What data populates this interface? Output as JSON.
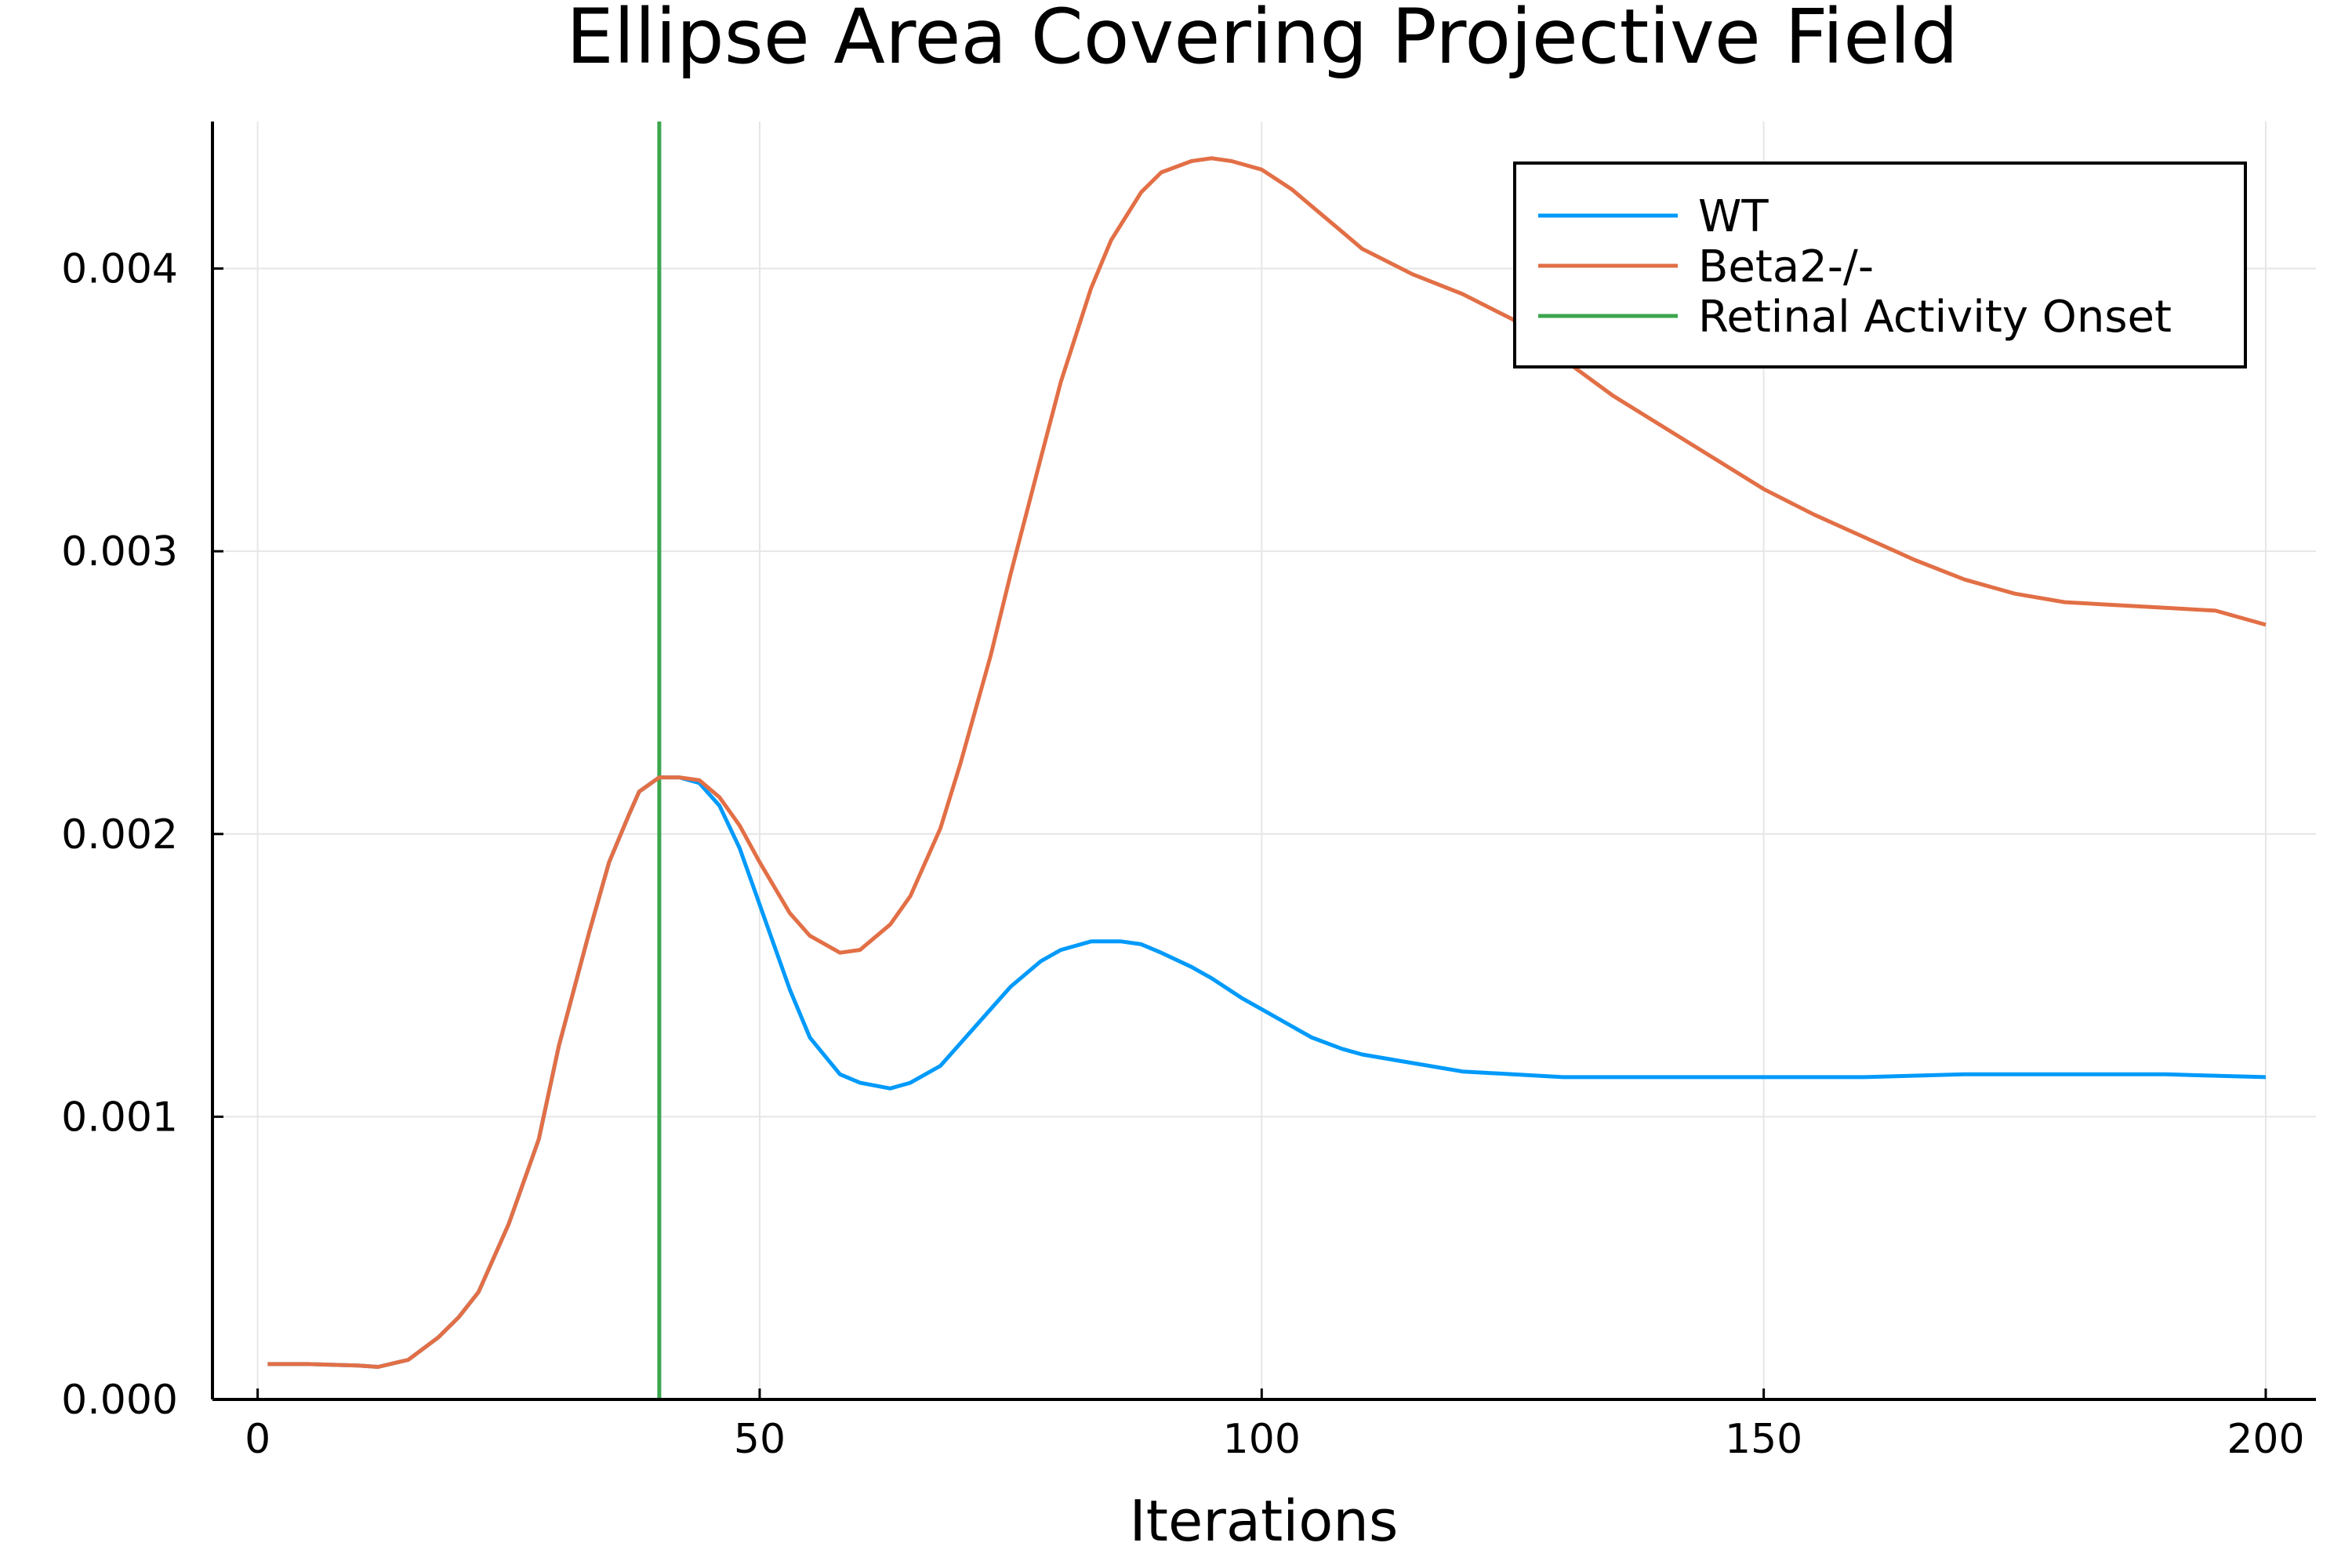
{
  "chart_data": {
    "type": "line",
    "title": "Ellipse Area Covering Projective Field",
    "xlabel": "Iterations",
    "ylabel": "",
    "xlim": [
      -4.5,
      205
    ],
    "ylim": [
      0,
      0.00452
    ],
    "xticks": [
      0,
      50,
      100,
      150,
      200
    ],
    "xtick_labels": [
      "0",
      "50",
      "100",
      "150",
      "200"
    ],
    "yticks": [
      0,
      0.001,
      0.002,
      0.003,
      0.004
    ],
    "ytick_labels": [
      "0.000",
      "0.001",
      "0.002",
      "0.003",
      "0.004"
    ],
    "grid": true,
    "legend_position": "top-right",
    "series": [
      {
        "name": "WT",
        "color": "#009AFA",
        "x": [
          1,
          5,
          10,
          12,
          15,
          18,
          20,
          22,
          25,
          28,
          30,
          33,
          35,
          37,
          38,
          40,
          42,
          44,
          46,
          48,
          50,
          53,
          55,
          58,
          60,
          63,
          65,
          68,
          70,
          73,
          75,
          78,
          80,
          83,
          86,
          88,
          90,
          93,
          95,
          98,
          100,
          103,
          105,
          108,
          110,
          115,
          120,
          125,
          130,
          140,
          150,
          160,
          170,
          180,
          190,
          200
        ],
        "y": [
          0.000125,
          0.000125,
          0.00012,
          0.000115,
          0.00014,
          0.00022,
          0.00029,
          0.00038,
          0.00062,
          0.00092,
          0.00125,
          0.00165,
          0.0019,
          0.00207,
          0.00215,
          0.0022,
          0.0022,
          0.00218,
          0.0021,
          0.00195,
          0.00175,
          0.00145,
          0.00128,
          0.00115,
          0.00112,
          0.0011,
          0.00112,
          0.00118,
          0.00126,
          0.00138,
          0.00146,
          0.00155,
          0.00159,
          0.00162,
          0.00162,
          0.00161,
          0.00158,
          0.00153,
          0.00149,
          0.00142,
          0.00138,
          0.00132,
          0.00128,
          0.00124,
          0.00122,
          0.00119,
          0.00116,
          0.00115,
          0.00114,
          0.00114,
          0.00114,
          0.00114,
          0.00115,
          0.00115,
          0.00115,
          0.00114
        ]
      },
      {
        "name": "Beta2-/-",
        "color": "#E26F46",
        "x": [
          1,
          5,
          10,
          12,
          15,
          18,
          20,
          22,
          25,
          28,
          30,
          33,
          35,
          37,
          38,
          40,
          42,
          44,
          46,
          48,
          50,
          53,
          55,
          58,
          60,
          63,
          65,
          68,
          70,
          73,
          75,
          78,
          80,
          83,
          85,
          88,
          90,
          93,
          95,
          97,
          100,
          103,
          105,
          108,
          110,
          115,
          120,
          125,
          130,
          135,
          140,
          145,
          150,
          155,
          160,
          165,
          170,
          175,
          180,
          185,
          190,
          195,
          200
        ],
        "y": [
          0.000125,
          0.000125,
          0.00012,
          0.000115,
          0.00014,
          0.00022,
          0.00029,
          0.00038,
          0.00062,
          0.00092,
          0.00125,
          0.00165,
          0.0019,
          0.00207,
          0.00215,
          0.0022,
          0.0022,
          0.00219,
          0.00213,
          0.00203,
          0.0019,
          0.00172,
          0.00164,
          0.00158,
          0.00159,
          0.00168,
          0.00178,
          0.00202,
          0.00225,
          0.00263,
          0.00292,
          0.00333,
          0.0036,
          0.00393,
          0.0041,
          0.00427,
          0.00434,
          0.00438,
          0.00439,
          0.00438,
          0.00435,
          0.00428,
          0.00422,
          0.00413,
          0.00407,
          0.00398,
          0.00391,
          0.00382,
          0.00368,
          0.00355,
          0.00344,
          0.00333,
          0.00322,
          0.00313,
          0.00305,
          0.00297,
          0.0029,
          0.00285,
          0.00282,
          0.00281,
          0.0028,
          0.00279,
          0.00274
        ]
      },
      {
        "name": "Retinal Activity Onset",
        "color": "#3BA64C",
        "x": [
          40,
          40
        ],
        "y": [
          0,
          0.00452
        ]
      }
    ]
  }
}
